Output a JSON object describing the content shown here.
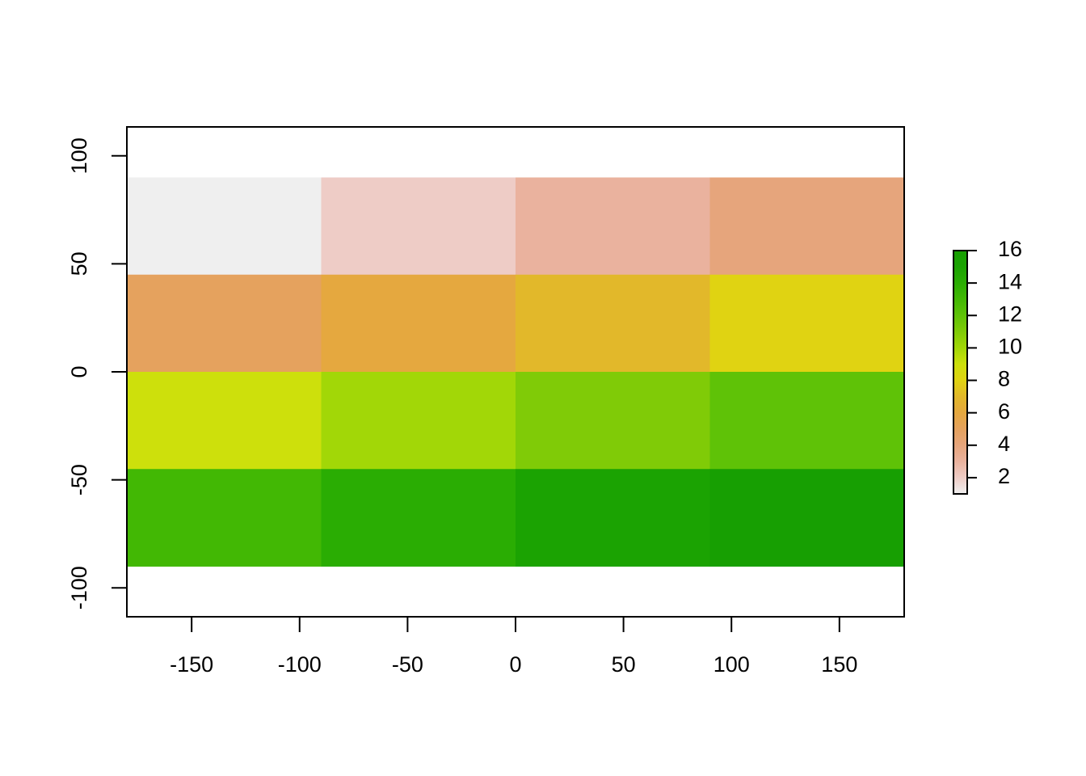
{
  "chart_data": {
    "type": "heatmap",
    "x_edges": [
      -180,
      -90,
      0,
      90,
      180
    ],
    "y_edges": [
      90,
      45,
      0,
      -45,
      -90
    ],
    "values": [
      [
        1,
        2,
        3,
        4
      ],
      [
        5,
        6,
        7,
        8
      ],
      [
        9,
        10,
        11,
        12
      ],
      [
        13,
        14,
        15,
        16
      ]
    ],
    "colors": [
      [
        "#efefef",
        "#eeccc6",
        "#eab29e",
        "#e6a57c"
      ],
      [
        "#e5a25e",
        "#e5a83f",
        "#e2b82a",
        "#e0d312"
      ],
      [
        "#cde00c",
        "#a2d707",
        "#80cb07",
        "#5fc207"
      ],
      [
        "#42b804",
        "#2aad03",
        "#1ba302",
        "#179f02"
      ]
    ],
    "xlim": [
      -180,
      180
    ],
    "ylim": [
      -113.4,
      113.4
    ],
    "xticks": [
      -150,
      -100,
      -50,
      0,
      50,
      100,
      150
    ],
    "yticks": [
      -100,
      -50,
      0,
      50,
      100
    ],
    "colorbar": {
      "lim": [
        1,
        16
      ],
      "ticks": [
        2,
        4,
        6,
        8,
        10,
        12,
        14,
        16
      ]
    }
  }
}
